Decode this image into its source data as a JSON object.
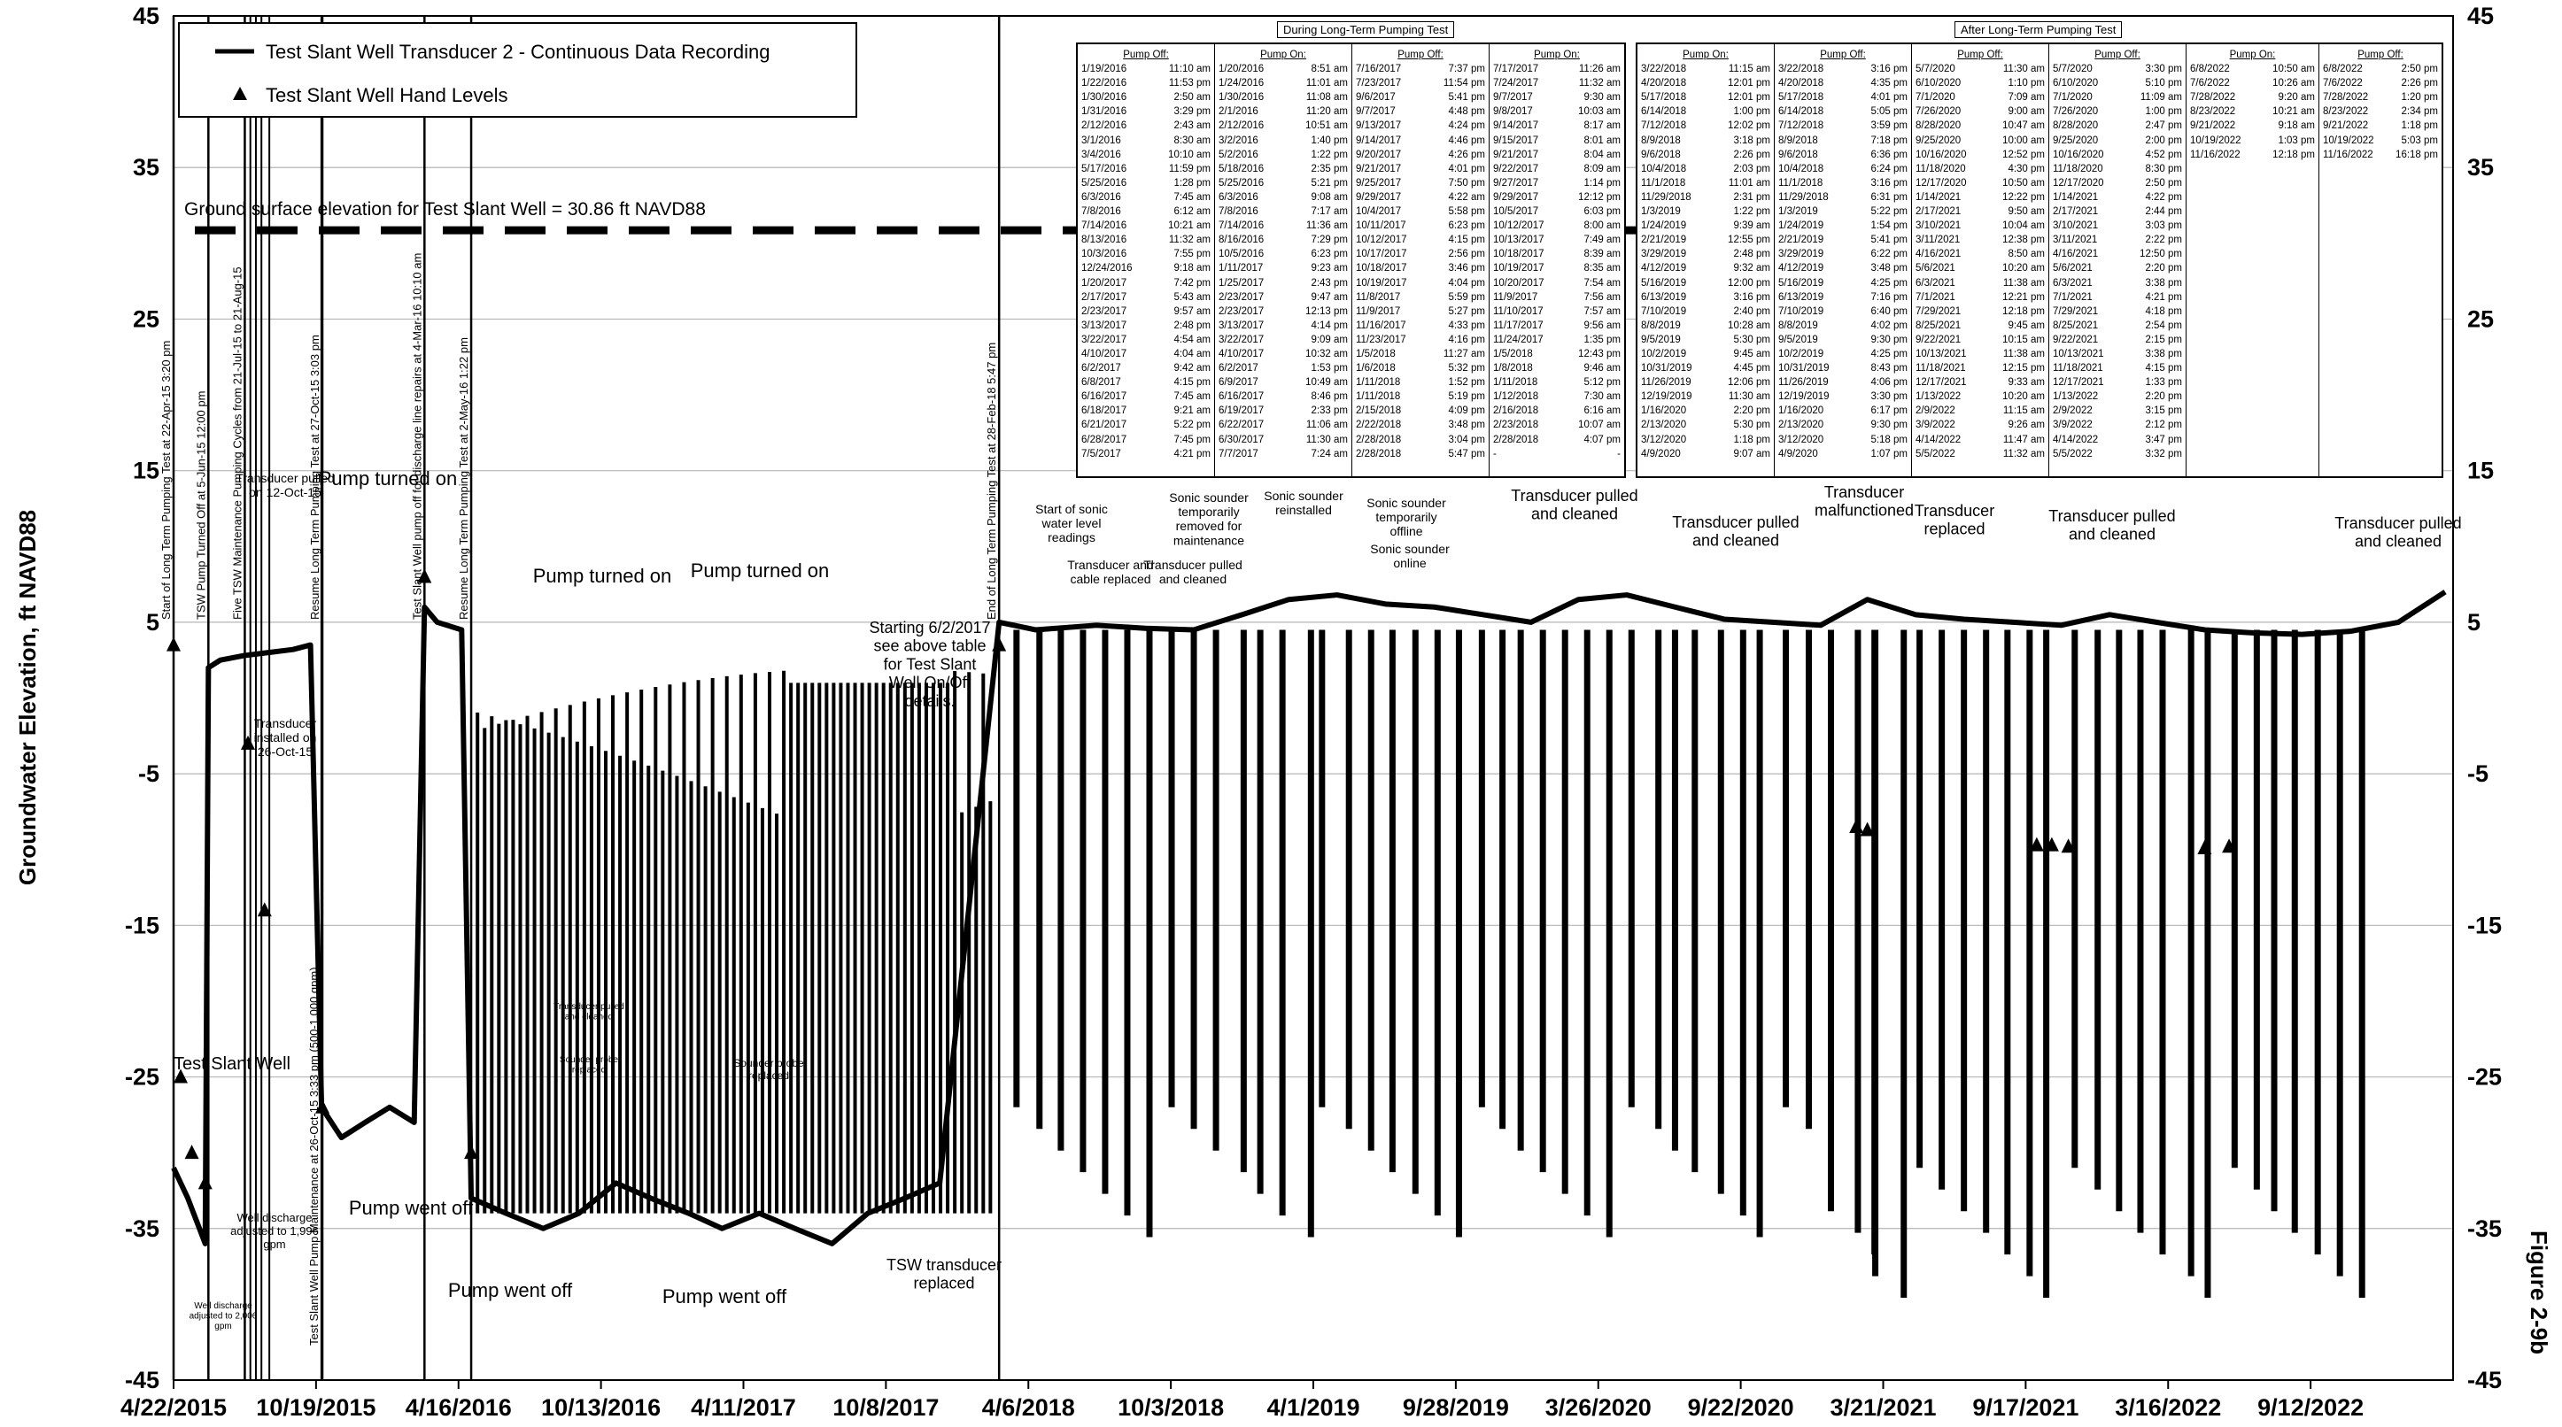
{
  "chart_data": {
    "type": "line",
    "ylabel": "Groundwater Elevation, ft NAVD88",
    "figure_label": "Figure 2-9b",
    "ylim": [
      -45,
      45
    ],
    "yticks": [
      -45,
      -35,
      -25,
      -15,
      -5,
      5,
      15,
      25,
      35,
      45
    ],
    "xticks": [
      "4/22/2015",
      "10/19/2015",
      "4/16/2016",
      "10/13/2016",
      "4/11/2017",
      "10/8/2017",
      "4/6/2018",
      "10/3/2018",
      "4/1/2019",
      "9/28/2019",
      "3/26/2020",
      "9/22/2020",
      "3/21/2021",
      "9/17/2021",
      "3/16/2022",
      "9/12/2022"
    ],
    "xlim": [
      "4/22/2015",
      "3/11/2023"
    ],
    "grid": true,
    "legend": {
      "placement": "top-left",
      "entries": [
        "Test Slant Well Transducer 2 - Continuous Data Recording",
        "Test Slant Well Hand Levels"
      ]
    },
    "ground_surface": {
      "label": "Ground surface elevation for Test Slant Well = 30.86 ft NAVD88",
      "value": 30.86
    },
    "vertical_events": [
      {
        "date": "4/22/2015",
        "label": "Start of Long Term Pumping Test at 22-Apr-15 3:20 pm"
      },
      {
        "date": "6/5/2015",
        "label": "TSW Pump Turned Off at 5-Jun-15 12:00 pm"
      },
      {
        "date": "7/21/2015",
        "label": "Five TSW Maintenance Pumping Cycles from 21-Jul-15 to 21-Aug-15"
      },
      {
        "date": "10/26/2015",
        "label": "Test Slant Well Pump Maintenance at 26-Oct-15 3:33 pm (500-1,000 gpm)"
      },
      {
        "date": "10/27/2015",
        "label": "Resume Long Term Pumping Test at 27-Oct-15 3:03 pm"
      },
      {
        "date": "3/4/2016",
        "label": "Test Slant Well pump off for discharge line repairs at 4-Mar-16 10:10 am"
      },
      {
        "date": "5/2/2016",
        "label": "Resume Long Term Pumping Test at 2-May-16 1:22 pm"
      },
      {
        "date": "2/28/2018",
        "label": "End of Long Term Pumping Test at 28-Feb-18 5:47 pm"
      }
    ],
    "annotations": [
      "Transducer pulled on 12-Oct-15",
      "Transducer installed on 26-Oct-15",
      "Pump turned on",
      "Pump turned on",
      "Pump turned on",
      "Pump went off",
      "Pump went off",
      "Pump went off",
      "Test Slant Well",
      "Well discharge adjusted to 1,996 gpm",
      "Well discharge adjusted to 2,006 gpm",
      "Transducer pulled and cleaned",
      "Sounder probe replaced",
      "Sounder probe replaced",
      "Starting 6/2/2017 see above table for Test Slant Well On/Off details.",
      "TSW transducer replaced",
      "Start of sonic water level readings",
      "Transducer and cable replaced",
      "Transducer pulled and cleaned",
      "Sonic sounder temporarily removed for maintenance",
      "Sonic sounder reinstalled",
      "Sonic sounder temporarily offline",
      "Sonic sounder online",
      "Transducer pulled and cleaned",
      "Transducer pulled and cleaned",
      "Transducer malfunctioned",
      "Transducer replaced",
      "Transducer pulled and cleaned",
      "Transducer pulled and cleaned"
    ],
    "series": [
      {
        "name": "Test Slant Well Transducer 2 - Continuous Data Recording",
        "x": [
          "4/22/2015",
          "5/10/2015",
          "6/1/2015",
          "6/5/2015",
          "6/20/2015",
          "7/20/2015",
          "8/20/2015",
          "9/20/2015",
          "10/12/2015",
          "10/26/2015",
          "11/20/2015",
          "12/20/2015",
          "1/20/2016",
          "2/20/2016",
          "3/4/2016",
          "3/20/2016",
          "4/20/2016",
          "5/2/2016",
          "6/15/2016",
          "8/1/2016",
          "9/15/2016",
          "11/1/2016",
          "12/15/2016",
          "2/1/2017",
          "3/15/2017",
          "5/1/2017",
          "6/15/2017",
          "8/1/2017",
          "9/15/2017",
          "11/1/2017",
          "12/15/2017",
          "2/28/2018",
          "4/15/2018",
          "7/1/2018",
          "9/1/2018",
          "11/1/2018",
          "1/1/2019",
          "3/1/2019",
          "5/1/2019",
          "7/1/2019",
          "9/1/2019",
          "11/1/2019",
          "1/1/2020",
          "3/1/2020",
          "5/1/2020",
          "7/1/2020",
          "9/1/2020",
          "11/1/2020",
          "1/1/2021",
          "3/1/2021",
          "5/1/2021",
          "7/1/2021",
          "9/1/2021",
          "11/1/2021",
          "1/1/2022",
          "3/1/2022",
          "5/1/2022",
          "7/1/2022",
          "9/1/2022",
          "11/1/2022",
          "1/1/2023",
          "3/1/2023"
        ],
        "y": [
          -31,
          -33,
          -36,
          2,
          2.5,
          2.8,
          3,
          3.2,
          3.5,
          -27,
          -29,
          -28,
          -27,
          -28,
          6,
          5,
          4.5,
          -33,
          -34,
          -35,
          -34,
          -32,
          -33,
          -34,
          -35,
          -34,
          -35,
          -36,
          -34,
          -33,
          -32,
          5,
          4.5,
          4.8,
          4.6,
          4.5,
          5.5,
          6.5,
          6.8,
          6.2,
          6,
          5.5,
          5,
          6.5,
          6.8,
          6,
          5.2,
          5,
          4.8,
          6.5,
          5.5,
          5.2,
          5,
          4.8,
          5.5,
          5,
          4.5,
          4.3,
          4.2,
          4.4,
          5,
          7
        ]
      },
      {
        "name": "Test Slant Well Hand Levels",
        "x": [
          "4/22/2015",
          "5/1/2015",
          "5/15/2015",
          "6/1/2015",
          "7/25/2015",
          "8/15/2015",
          "10/27/2015",
          "3/4/2016",
          "5/2/2016",
          "2/28/2018",
          "2/15/2021",
          "3/1/2021",
          "10/1/2021",
          "10/20/2021",
          "11/10/2021",
          "5/1/2022",
          "6/1/2022"
        ],
        "y": [
          3.5,
          -25,
          -30,
          -32,
          -3,
          -14,
          -27,
          8,
          -30,
          3.5,
          -8.5,
          -8.7,
          -9.7,
          -9.7,
          -9.8,
          -9.9,
          -9.8
        ]
      }
    ]
  },
  "tables": {
    "during": {
      "title": "During Long-Term Pumping Test",
      "col_headers": [
        "Pump Off:",
        "Pump On:",
        "Pump Off:",
        "Pump On:"
      ],
      "cols": [
        [
          "1/19/2016 11:10 am",
          "1/22/2016 11:53 pm",
          "1/30/2016 2:50 am",
          "1/31/2016 3:29 pm",
          "2/12/2016 2:43 am",
          "3/1/2016 8:30 am",
          "3/4/2016 10:10 am",
          "5/17/2016 11:59 pm",
          "5/25/2016 1:28 pm",
          "6/3/2016 7:45 am",
          "7/8/2016 6:12 am",
          "7/14/2016 10:21 am",
          "8/13/2016 11:32 am",
          "10/3/2016 7:55 pm",
          "12/24/2016 9:18 am",
          "1/20/2017 7:42 pm",
          "2/17/2017 5:43 am",
          "2/23/2017 9:57 am",
          "3/13/2017 2:48 pm",
          "3/22/2017 4:54 am",
          "4/10/2017 4:04 am",
          "6/2/2017 9:42 am",
          "6/8/2017 4:15 pm",
          "6/16/2017 7:45 am",
          "6/18/2017 9:21 am",
          "6/21/2017 5:22 pm",
          "6/28/2017 7:45 pm",
          "7/5/2017 4:21 pm"
        ],
        [
          "1/20/2016 8:51 am",
          "1/24/2016 11:01 am",
          "1/30/2016 11:08 am",
          "2/1/2016 11:20 am",
          "2/12/2016 10:51 am",
          "3/2/2016 1:40 pm",
          "5/2/2016 1:22 pm",
          "5/18/2016 2:35 pm",
          "5/25/2016 5:21 pm",
          "6/3/2016 9:08 am",
          "7/8/2016 7:17 am",
          "7/14/2016 11:36 am",
          "8/16/2016 7:29 pm",
          "10/5/2016 6:23 pm",
          "1/11/2017 9:23 am",
          "1/25/2017 2:43 pm",
          "2/23/2017 9:47 am",
          "2/23/2017 12:13 pm",
          "3/13/2017 4:14 pm",
          "3/22/2017 9:09 am",
          "4/10/2017 10:32 am",
          "6/2/2017 1:53 pm",
          "6/9/2017 10:49 am",
          "6/16/2017 8:46 pm",
          "6/19/2017 2:33 pm",
          "6/22/2017 11:06 am",
          "6/30/2017 11:30 am",
          "7/7/2017 7:24 am"
        ],
        [
          "7/16/2017 7:37 pm",
          "7/23/2017 11:54 pm",
          "9/6/2017 5:41 pm",
          "9/7/2017 4:48 pm",
          "9/13/2017 4:24 pm",
          "9/14/2017 4:46 pm",
          "9/20/2017 4:26 pm",
          "9/21/2017 4:01 pm",
          "9/25/2017 7:50 pm",
          "9/29/2017 4:22 am",
          "10/4/2017 5:58 pm",
          "10/11/2017 6:23 pm",
          "10/12/2017 4:15 pm",
          "10/17/2017 2:56 pm",
          "10/18/2017 3:46 pm",
          "10/19/2017 4:04 pm",
          "11/8/2017 5:59 pm",
          "11/9/2017 5:27 pm",
          "11/16/2017 4:33 pm",
          "11/23/2017 4:16 pm",
          "1/5/2018 11:27 am",
          "1/6/2018 5:32 pm",
          "1/11/2018 1:52 pm",
          "1/11/2018 5:19 pm",
          "2/15/2018 4:09 pm",
          "2/22/2018 3:48 pm",
          "2/28/2018 3:04 pm",
          "2/28/2018 5:47 pm"
        ],
        [
          "7/17/2017 11:26 am",
          "7/24/2017 11:32 am",
          "9/7/2017 9:30 am",
          "9/8/2017 10:03 am",
          "9/14/2017 8:17 am",
          "9/15/2017 8:01 am",
          "9/21/2017 8:04 am",
          "9/22/2017 8:09 am",
          "9/27/2017 1:14 pm",
          "9/29/2017 12:12 pm",
          "10/5/2017 6:03 pm",
          "10/12/2017 8:00 am",
          "10/13/2017 7:49 am",
          "10/18/2017 8:39 am",
          "10/19/2017 8:35 am",
          "10/20/2017 7:54 am",
          "11/9/2017 7:56 am",
          "11/10/2017 7:57 am",
          "11/17/2017 9:56 am",
          "11/24/2017 1:35 pm",
          "1/5/2018 12:43 pm",
          "1/8/2018 9:46 am",
          "1/11/2018 5:12 pm",
          "1/12/2018 7:30 am",
          "2/16/2018 6:16 am",
          "2/23/2018 10:07 am",
          "2/28/2018 4:07 pm",
          "- -"
        ]
      ]
    },
    "after": {
      "title": "After Long-Term Pumping Test",
      "col_headers": [
        "Pump On:",
        "Pump Off:",
        "Pump Off:",
        "Pump Off:",
        "Pump On:",
        "Pump Off:"
      ],
      "cols": [
        [
          "3/22/2018 11:15 am",
          "4/20/2018 12:01 pm",
          "5/17/2018 12:01 pm",
          "6/14/2018 1:00 pm",
          "7/12/2018 12:02 pm",
          "8/9/2018 3:18 pm",
          "9/6/2018 2:26 pm",
          "10/4/2018 2:03 pm",
          "11/1/2018 11:01 am",
          "11/29/2018 2:31 pm",
          "1/3/2019 1:22 pm",
          "1/24/2019 9:39 am",
          "2/21/2019 12:55 pm",
          "3/29/2019 2:48 pm",
          "4/12/2019 9:32 am",
          "5/16/2019 12:00 pm",
          "6/13/2019 3:16 pm",
          "7/10/2019 2:40 pm",
          "8/8/2019 10:28 am",
          "9/5/2019 5:30 pm",
          "10/2/2019 9:45 am",
          "10/31/2019 4:45 pm",
          "11/26/2019 12:06 pm",
          "12/19/2019 11:30 am",
          "1/16/2020 2:20 pm",
          "2/13/2020 5:30 pm",
          "3/12/2020 1:18 pm",
          "4/9/2020 9:07 am"
        ],
        [
          "3/22/2018 3:16 pm",
          "4/20/2018 4:35 pm",
          "5/17/2018 4:01 pm",
          "6/14/2018 5:05 pm",
          "7/12/2018 3:59 pm",
          "8/9/2018 7:18 pm",
          "9/6/2018 6:36 pm",
          "10/4/2018 6:24 pm",
          "11/1/2018 3:16 pm",
          "11/29/2018 6:31 pm",
          "1/3/2019 5:22 pm",
          "1/24/2019 1:54 pm",
          "2/21/2019 5:41 pm",
          "3/29/2019 6:22 pm",
          "4/12/2019 3:48 pm",
          "5/16/2019 4:25 pm",
          "6/13/2019 7:16 pm",
          "7/10/2019 6:40 pm",
          "8/8/2019 4:02 pm",
          "9/5/2019 9:30 pm",
          "10/2/2019 4:25 pm",
          "10/31/2019 8:43 pm",
          "11/26/2019 4:06 pm",
          "12/19/2019 3:30 pm",
          "1/16/2020 6:17 pm",
          "2/13/2020 9:30 pm",
          "3/12/2020 5:18 pm",
          "4/9/2020 1:07 pm"
        ],
        [
          "5/7/2020 11:30 am",
          "6/10/2020 1:10 pm",
          "7/1/2020 7:09 am",
          "7/26/2020 9:00 am",
          "8/28/2020 10:47 am",
          "9/25/2020 10:00 am",
          "10/16/2020 12:52 pm",
          "11/18/2020 4:30 pm",
          "12/17/2020 10:50 am",
          "1/14/2021 12:22 pm",
          "2/17/2021 9:50 am",
          "3/10/2021 10:04 am",
          "3/11/2021 12:38 pm",
          "4/16/2021 8:50 am",
          "5/6/2021 10:20 am",
          "6/3/2021 11:38 am",
          "7/1/2021 12:21 pm",
          "7/29/2021 12:18 pm",
          "8/25/2021 9:45 am",
          "9/22/2021 10:15 am",
          "10/13/2021 11:38 am",
          "11/18/2021 12:15 pm",
          "12/17/2021 9:33 am",
          "1/13/2022 10:20 am",
          "2/9/2022 11:15 am",
          "3/9/2022 9:26 am",
          "4/14/2022 11:47 am",
          "5/5/2022 11:32 am"
        ],
        [
          "5/7/2020 3:30 pm",
          "6/10/2020 5:10 pm",
          "7/1/2020 11:09 am",
          "7/26/2020 1:00 pm",
          "8/28/2020 2:47 pm",
          "9/25/2020 2:00 pm",
          "10/16/2020 4:52 pm",
          "11/18/2020 8:30 pm",
          "12/17/2020 2:50 pm",
          "1/14/2021 4:22 pm",
          "2/17/2021 2:44 pm",
          "3/10/2021 3:03 pm",
          "3/11/2021 2:22 pm",
          "4/16/2021 12:50 pm",
          "5/6/2021 2:20 pm",
          "6/3/2021 3:38 pm",
          "7/1/2021 4:21 pm",
          "7/29/2021 4:18 pm",
          "8/25/2021 2:54 pm",
          "9/22/2021 2:15 pm",
          "10/13/2021 3:38 pm",
          "11/18/2021 4:15 pm",
          "12/17/2021 1:33 pm",
          "1/13/2022 2:20 pm",
          "2/9/2022 3:15 pm",
          "3/9/2022 2:12 pm",
          "4/14/2022 3:47 pm",
          "5/5/2022 3:32 pm"
        ],
        [
          "6/8/2022 10:50 am",
          "7/6/2022 10:26 am",
          "7/28/2022 9:20 am",
          "8/23/2022 10:21 am",
          "9/21/2022 9:18 am",
          "10/19/2022 1:03 pm",
          "11/16/2022 12:18 pm"
        ],
        [
          "6/8/2022 2:50 pm",
          "7/6/2022 2:26 pm",
          "7/28/2022 1:20 pm",
          "8/23/2022 2:34 pm",
          "9/21/2022 1:18 pm",
          "10/19/2022 5:03 pm",
          "11/16/2022 16:18 pm"
        ]
      ]
    }
  }
}
